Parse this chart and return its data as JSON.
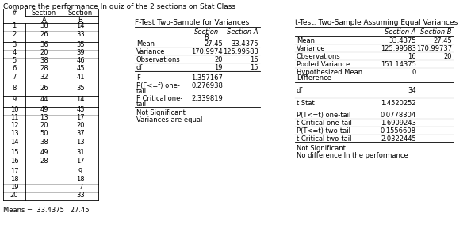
{
  "title": "Compare the performance In quiz of the 2 sections on Stat Class",
  "section_a": [
    38,
    26,
    36,
    20,
    38,
    28,
    32,
    26,
    44,
    49,
    13,
    20,
    50,
    38,
    49,
    28,
    null,
    null,
    null,
    null
  ],
  "section_b": [
    14,
    33,
    35,
    39,
    46,
    45,
    41,
    35,
    14,
    45,
    17,
    20,
    37,
    13,
    31,
    17,
    9,
    18,
    7,
    33
  ],
  "ftest_title": "F-Test Two-Sample for Variances",
  "ftest_rows": [
    [
      "Mean",
      "27.45",
      "33.4375"
    ],
    [
      "Variance",
      "170.9974",
      "125.99583"
    ],
    [
      "Observations",
      "20",
      "16"
    ],
    [
      "df",
      "19",
      "15"
    ]
  ],
  "ftest_stats": [
    [
      "F",
      "1.357167"
    ],
    [
      "P(F<=f) one-\ntail",
      "0.276938"
    ],
    [
      "F Critical one-\ntail",
      "2.339819"
    ]
  ],
  "ftest_notes": [
    "Not Significant",
    "Variances are equal"
  ],
  "ttest_title": "t-Test: Two-Sample Assuming Equal Variances",
  "ttest_rows": [
    [
      "Mean",
      "33.4375",
      "27.45"
    ],
    [
      "Variance",
      "125.99583",
      "170.99737"
    ],
    [
      "Observations",
      "16",
      "20"
    ],
    [
      "Pooled Variance",
      "151.14375",
      ""
    ],
    [
      "Hypothesized Mean\nDifference",
      "0",
      ""
    ]
  ],
  "ttest_gap_stat": [
    "df",
    "34"
  ],
  "ttest_gap_stat2": [
    "t Stat",
    "1.4520252"
  ],
  "ttest_stats": [
    [
      "P(T<=t) one-tail",
      "0.0778304"
    ],
    [
      "t Critical one-tail",
      "1.6909243"
    ],
    [
      "P(T<=t) two-tail",
      "0.1556608"
    ],
    [
      "t Critical two-tail",
      "2.0322445"
    ]
  ],
  "ttest_notes": [
    "Not Significant",
    "No difference In the performance"
  ],
  "means_label": "Means =",
  "mean_a": "33.4375",
  "mean_b": "27.45",
  "bg_color": "#ffffff",
  "font_size": 6.0,
  "title_font_size": 6.5
}
